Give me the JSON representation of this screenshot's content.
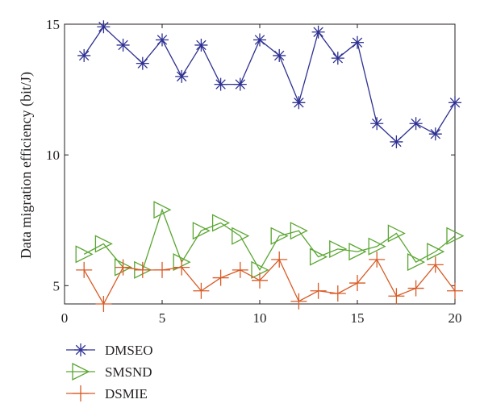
{
  "chart_data": {
    "type": "line",
    "xlabel": "",
    "ylabel": "Data migration efficiency (bit/J)",
    "xlim": [
      0,
      20
    ],
    "ylim": [
      4.3,
      15
    ],
    "xticks": [
      "0",
      "5",
      "10",
      "15",
      "20"
    ],
    "yticks": [
      "5",
      "10",
      "15"
    ],
    "grid": false,
    "legend_position": "bottom-left, below plot",
    "x": [
      1,
      2,
      3,
      4,
      5,
      6,
      7,
      8,
      9,
      10,
      11,
      12,
      13,
      14,
      15,
      16,
      17,
      18,
      19,
      20
    ],
    "series": [
      {
        "name": "DMSEO",
        "color": "#2e3192",
        "marker": "asterisk",
        "values": [
          13.8,
          14.9,
          14.2,
          13.5,
          14.4,
          13.0,
          14.2,
          12.7,
          12.7,
          14.4,
          13.8,
          12.0,
          14.7,
          13.7,
          14.3,
          11.2,
          10.5,
          11.2,
          10.8,
          12.0
        ]
      },
      {
        "name": "SMSND",
        "color": "#5aa632",
        "marker": "triangle-right",
        "values": [
          6.2,
          6.6,
          5.7,
          5.6,
          7.9,
          5.9,
          7.1,
          7.4,
          6.9,
          5.6,
          6.9,
          7.1,
          6.1,
          6.4,
          6.3,
          6.5,
          7.0,
          5.9,
          6.3,
          6.9
        ]
      },
      {
        "name": "DSMIE",
        "color": "#d85b27",
        "marker": "plus",
        "values": [
          5.6,
          4.3,
          5.7,
          5.6,
          5.6,
          5.7,
          4.8,
          5.3,
          5.6,
          5.2,
          6.0,
          4.4,
          4.8,
          4.7,
          5.1,
          6.0,
          4.6,
          4.9,
          5.8,
          4.8
        ]
      }
    ]
  }
}
